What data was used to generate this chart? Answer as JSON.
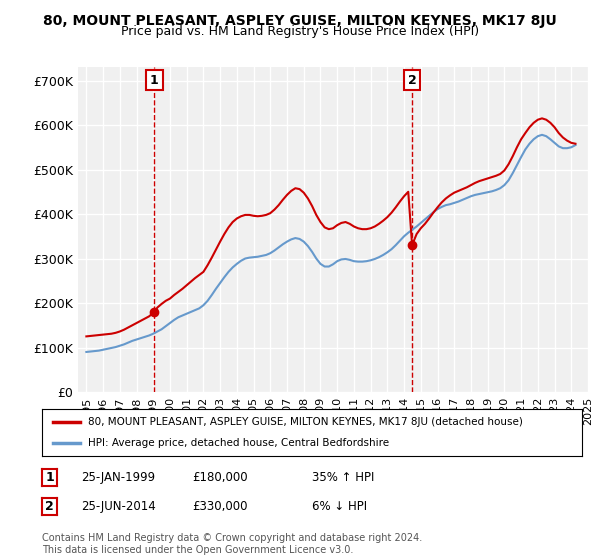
{
  "title": "80, MOUNT PLEASANT, ASPLEY GUISE, MILTON KEYNES, MK17 8JU",
  "subtitle": "Price paid vs. HM Land Registry's House Price Index (HPI)",
  "xlabel": "",
  "ylabel": "",
  "ylim": [
    0,
    730000
  ],
  "yticks": [
    0,
    100000,
    200000,
    300000,
    400000,
    500000,
    600000,
    700000
  ],
  "ytick_labels": [
    "£0",
    "£100K",
    "£200K",
    "£300K",
    "£400K",
    "£500K",
    "£600K",
    "£700K"
  ],
  "background_color": "#ffffff",
  "plot_bg_color": "#f0f0f0",
  "grid_color": "#ffffff",
  "red_line_color": "#cc0000",
  "blue_line_color": "#6699cc",
  "marker1_year": 1999.07,
  "marker1_price": 180000,
  "marker1_label": "1",
  "marker1_date": "25-JAN-1999",
  "marker1_amount": "£180,000",
  "marker1_pct": "35% ↑ HPI",
  "marker2_year": 2014.48,
  "marker2_price": 330000,
  "marker2_label": "2",
  "marker2_date": "25-JUN-2014",
  "marker2_amount": "£330,000",
  "marker2_pct": "6% ↓ HPI",
  "legend_entry1": "80, MOUNT PLEASANT, ASPLEY GUISE, MILTON KEYNES, MK17 8JU (detached house)",
  "legend_entry2": "HPI: Average price, detached house, Central Bedfordshire",
  "footer": "Contains HM Land Registry data © Crown copyright and database right 2024.\nThis data is licensed under the Open Government Licence v3.0.",
  "hpi_years": [
    1995.0,
    1995.25,
    1995.5,
    1995.75,
    1996.0,
    1996.25,
    1996.5,
    1996.75,
    1997.0,
    1997.25,
    1997.5,
    1997.75,
    1998.0,
    1998.25,
    1998.5,
    1998.75,
    1999.0,
    1999.25,
    1999.5,
    1999.75,
    2000.0,
    2000.25,
    2000.5,
    2000.75,
    2001.0,
    2001.25,
    2001.5,
    2001.75,
    2002.0,
    2002.25,
    2002.5,
    2002.75,
    2003.0,
    2003.25,
    2003.5,
    2003.75,
    2004.0,
    2004.25,
    2004.5,
    2004.75,
    2005.0,
    2005.25,
    2005.5,
    2005.75,
    2006.0,
    2006.25,
    2006.5,
    2006.75,
    2007.0,
    2007.25,
    2007.5,
    2007.75,
    2008.0,
    2008.25,
    2008.5,
    2008.75,
    2009.0,
    2009.25,
    2009.5,
    2009.75,
    2010.0,
    2010.25,
    2010.5,
    2010.75,
    2011.0,
    2011.25,
    2011.5,
    2011.75,
    2012.0,
    2012.25,
    2012.5,
    2012.75,
    2013.0,
    2013.25,
    2013.5,
    2013.75,
    2014.0,
    2014.25,
    2014.5,
    2014.75,
    2015.0,
    2015.25,
    2015.5,
    2015.75,
    2016.0,
    2016.25,
    2016.5,
    2016.75,
    2017.0,
    2017.25,
    2017.5,
    2017.75,
    2018.0,
    2018.25,
    2018.5,
    2018.75,
    2019.0,
    2019.25,
    2019.5,
    2019.75,
    2020.0,
    2020.25,
    2020.5,
    2020.75,
    2021.0,
    2021.25,
    2021.5,
    2021.75,
    2022.0,
    2022.25,
    2022.5,
    2022.75,
    2023.0,
    2023.25,
    2023.5,
    2023.75,
    2024.0,
    2024.25
  ],
  "hpi_values": [
    90000,
    91000,
    92000,
    93000,
    95000,
    97000,
    99000,
    101000,
    104000,
    107000,
    111000,
    115000,
    118000,
    121000,
    124000,
    127000,
    131000,
    136000,
    141000,
    148000,
    155000,
    162000,
    168000,
    172000,
    176000,
    180000,
    184000,
    188000,
    195000,
    205000,
    218000,
    232000,
    245000,
    258000,
    270000,
    280000,
    288000,
    295000,
    300000,
    302000,
    303000,
    304000,
    306000,
    308000,
    312000,
    318000,
    325000,
    332000,
    338000,
    343000,
    346000,
    344000,
    338000,
    328000,
    315000,
    300000,
    288000,
    282000,
    282000,
    287000,
    294000,
    298000,
    299000,
    297000,
    294000,
    293000,
    293000,
    294000,
    296000,
    299000,
    303000,
    308000,
    314000,
    321000,
    330000,
    340000,
    350000,
    358000,
    365000,
    372000,
    380000,
    388000,
    396000,
    404000,
    411000,
    416000,
    420000,
    422000,
    425000,
    428000,
    432000,
    436000,
    440000,
    443000,
    445000,
    447000,
    449000,
    451000,
    454000,
    458000,
    465000,
    476000,
    492000,
    510000,
    528000,
    545000,
    558000,
    568000,
    575000,
    578000,
    575000,
    568000,
    560000,
    552000,
    548000,
    548000,
    550000,
    555000
  ],
  "red_years": [
    1995.0,
    1995.25,
    1995.5,
    1995.75,
    1996.0,
    1996.25,
    1996.5,
    1996.75,
    1997.0,
    1997.25,
    1997.5,
    1997.75,
    1998.0,
    1998.25,
    1998.5,
    1998.75,
    1999.07,
    1999.25,
    1999.5,
    1999.75,
    2000.0,
    2000.25,
    2000.5,
    2000.75,
    2001.0,
    2001.25,
    2001.5,
    2001.75,
    2002.0,
    2002.25,
    2002.5,
    2002.75,
    2003.0,
    2003.25,
    2003.5,
    2003.75,
    2004.0,
    2004.25,
    2004.5,
    2004.75,
    2005.0,
    2005.25,
    2005.5,
    2005.75,
    2006.0,
    2006.25,
    2006.5,
    2006.75,
    2007.0,
    2007.25,
    2007.5,
    2007.75,
    2008.0,
    2008.25,
    2008.5,
    2008.75,
    2009.0,
    2009.25,
    2009.5,
    2009.75,
    2010.0,
    2010.25,
    2010.5,
    2010.75,
    2011.0,
    2011.25,
    2011.5,
    2011.75,
    2012.0,
    2012.25,
    2012.5,
    2012.75,
    2013.0,
    2013.25,
    2013.5,
    2013.75,
    2014.0,
    2014.25,
    2014.48,
    2014.75,
    2015.0,
    2015.25,
    2015.5,
    2015.75,
    2016.0,
    2016.25,
    2016.5,
    2016.75,
    2017.0,
    2017.25,
    2017.5,
    2017.75,
    2018.0,
    2018.25,
    2018.5,
    2018.75,
    2019.0,
    2019.25,
    2019.5,
    2019.75,
    2020.0,
    2020.25,
    2020.5,
    2020.75,
    2021.0,
    2021.25,
    2021.5,
    2021.75,
    2022.0,
    2022.25,
    2022.5,
    2022.75,
    2023.0,
    2023.25,
    2023.5,
    2023.75,
    2024.0,
    2024.25
  ],
  "red_values": [
    125000,
    126000,
    127000,
    128000,
    129000,
    130000,
    131000,
    133000,
    136000,
    140000,
    145000,
    150000,
    155000,
    160000,
    165000,
    170000,
    180000,
    190000,
    198000,
    205000,
    210000,
    218000,
    225000,
    232000,
    240000,
    248000,
    256000,
    263000,
    270000,
    285000,
    302000,
    320000,
    338000,
    355000,
    370000,
    382000,
    390000,
    395000,
    398000,
    398000,
    396000,
    395000,
    396000,
    398000,
    402000,
    410000,
    420000,
    432000,
    443000,
    452000,
    458000,
    456000,
    448000,
    435000,
    418000,
    398000,
    382000,
    370000,
    366000,
    368000,
    375000,
    380000,
    382000,
    378000,
    372000,
    368000,
    366000,
    366000,
    368000,
    372000,
    378000,
    385000,
    393000,
    403000,
    415000,
    428000,
    440000,
    450000,
    330000,
    355000,
    368000,
    378000,
    390000,
    403000,
    415000,
    426000,
    435000,
    442000,
    448000,
    452000,
    456000,
    460000,
    465000,
    470000,
    474000,
    477000,
    480000,
    483000,
    486000,
    490000,
    498000,
    512000,
    530000,
    550000,
    568000,
    582000,
    595000,
    605000,
    612000,
    615000,
    612000,
    605000,
    595000,
    582000,
    572000,
    565000,
    560000,
    558000
  ],
  "xlim": [
    1994.5,
    2025.0
  ],
  "xtick_years": [
    1995,
    1996,
    1997,
    1998,
    1999,
    2000,
    2001,
    2002,
    2003,
    2004,
    2005,
    2006,
    2007,
    2008,
    2009,
    2010,
    2011,
    2012,
    2013,
    2014,
    2015,
    2016,
    2017,
    2018,
    2019,
    2020,
    2021,
    2022,
    2023,
    2024,
    2025
  ]
}
